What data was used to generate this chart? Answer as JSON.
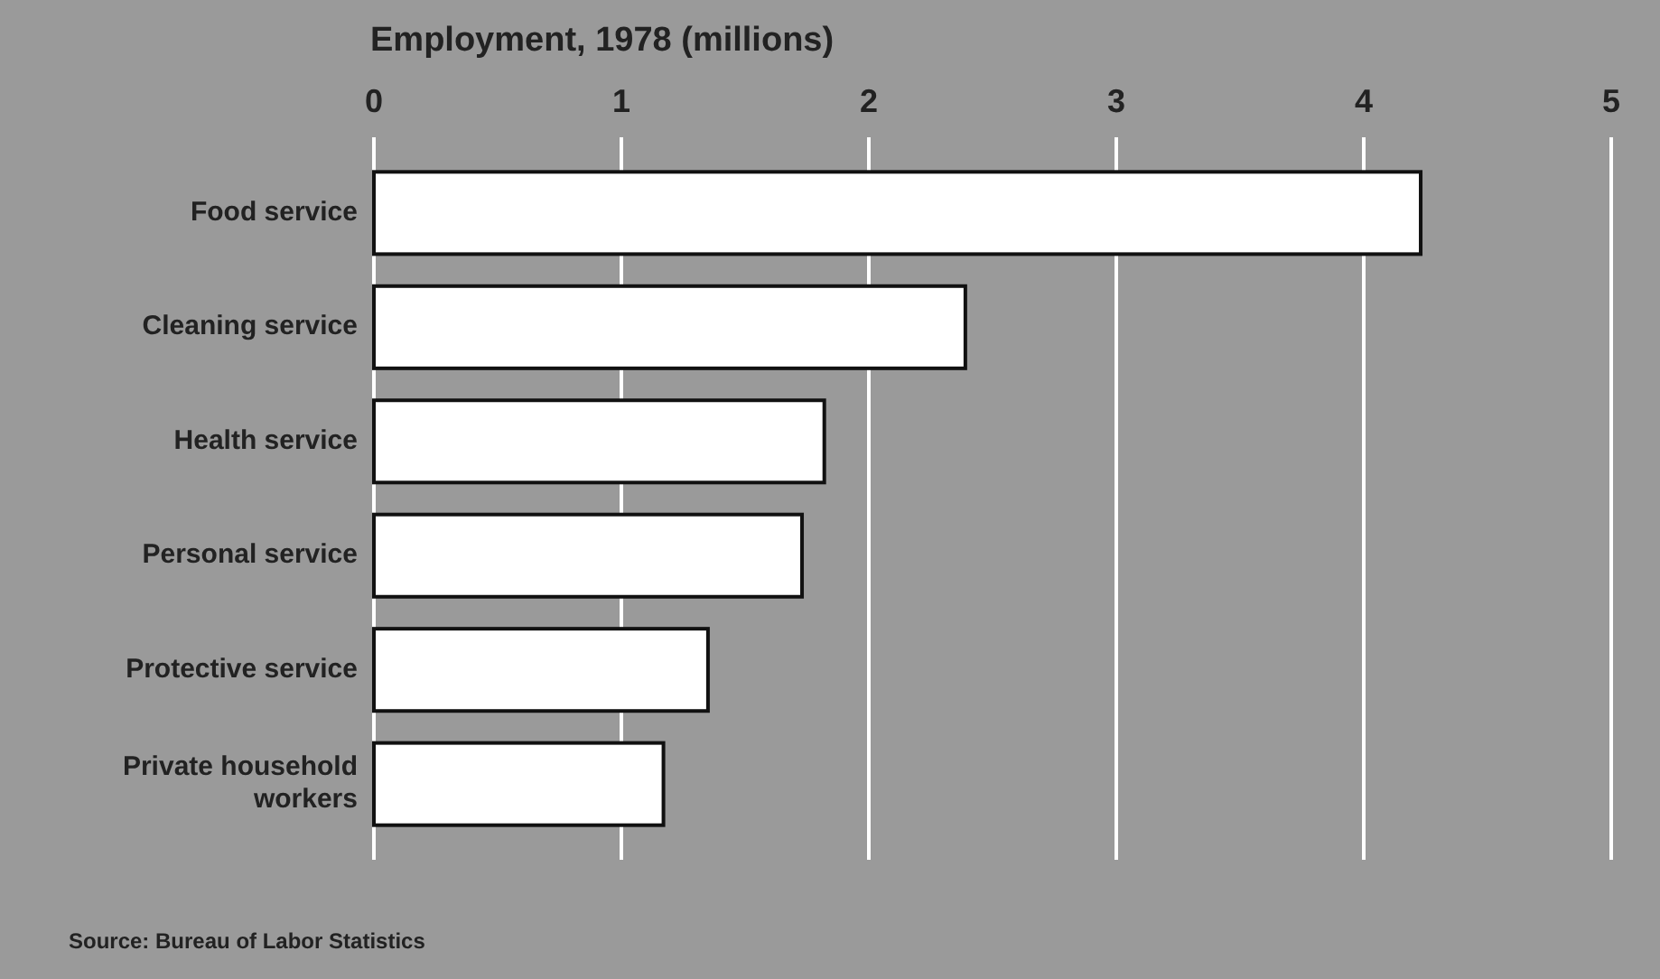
{
  "chart_data": {
    "type": "bar",
    "orientation": "horizontal",
    "title": "Employment, 1978 (millions)",
    "categories": [
      "Food service",
      "Cleaning service",
      "Health service",
      "Personal service",
      "Protective service",
      "Private household workers"
    ],
    "values": [
      4.23,
      2.39,
      1.82,
      1.73,
      1.35,
      1.17
    ],
    "color": "#ffffff",
    "xlim": [
      0,
      5
    ],
    "xticks": [
      0,
      1,
      2,
      3,
      4,
      5
    ],
    "grid": "x",
    "annotations": [
      "Source: Bureau of Labor Statistics"
    ]
  }
}
